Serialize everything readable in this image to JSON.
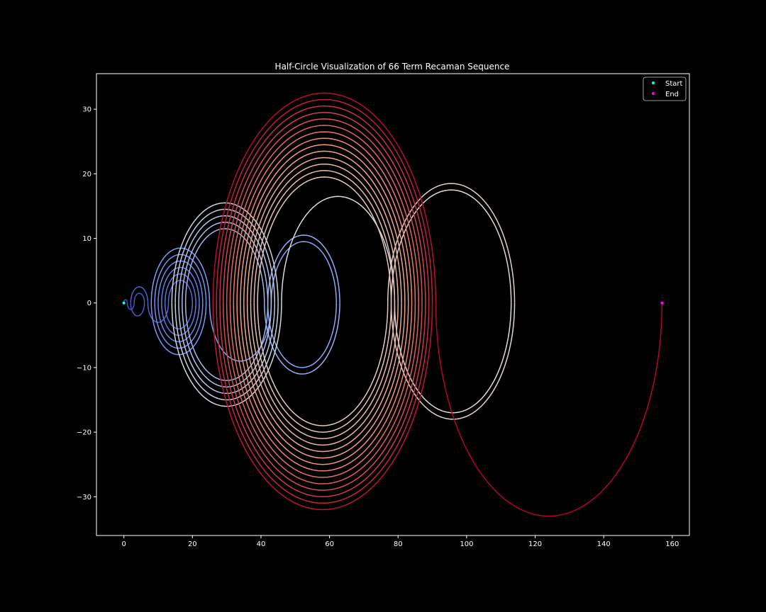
{
  "chart_data": {
    "type": "line",
    "title": "Half-Circle Visualization of 66 Term Recaman Sequence",
    "xlabel": "",
    "ylabel": "",
    "xlim": [
      -8,
      165
    ],
    "ylim": [
      -36,
      35.5
    ],
    "xticks": [
      0,
      20,
      40,
      60,
      80,
      100,
      120,
      140,
      160
    ],
    "yticks": [
      -30,
      -20,
      -10,
      0,
      10,
      20,
      30
    ],
    "grid": false,
    "background": "#000000",
    "axes_color": "#ffffff",
    "colormap": "coolwarm",
    "legend": {
      "placement": "top-right",
      "entries": [
        {
          "label": "Start",
          "color": "#00ffff"
        },
        {
          "label": "End",
          "color": "#ff00ff"
        }
      ]
    },
    "sequence": [
      0,
      1,
      3,
      6,
      2,
      7,
      13,
      20,
      12,
      21,
      11,
      22,
      10,
      23,
      9,
      24,
      8,
      25,
      43,
      62,
      42,
      63,
      41,
      18,
      42,
      17,
      43,
      16,
      44,
      15,
      45,
      14,
      46,
      79,
      113,
      78,
      114,
      77,
      39,
      78,
      38,
      79,
      37,
      80,
      36,
      81,
      35,
      82,
      34,
      83,
      33,
      84,
      32,
      85,
      31,
      86,
      30,
      87,
      29,
      88,
      28,
      89,
      27,
      90,
      26,
      91,
      157
    ],
    "start_point": {
      "x": 0,
      "y": 0
    },
    "end_point": {
      "x": 157,
      "y": 0
    }
  }
}
